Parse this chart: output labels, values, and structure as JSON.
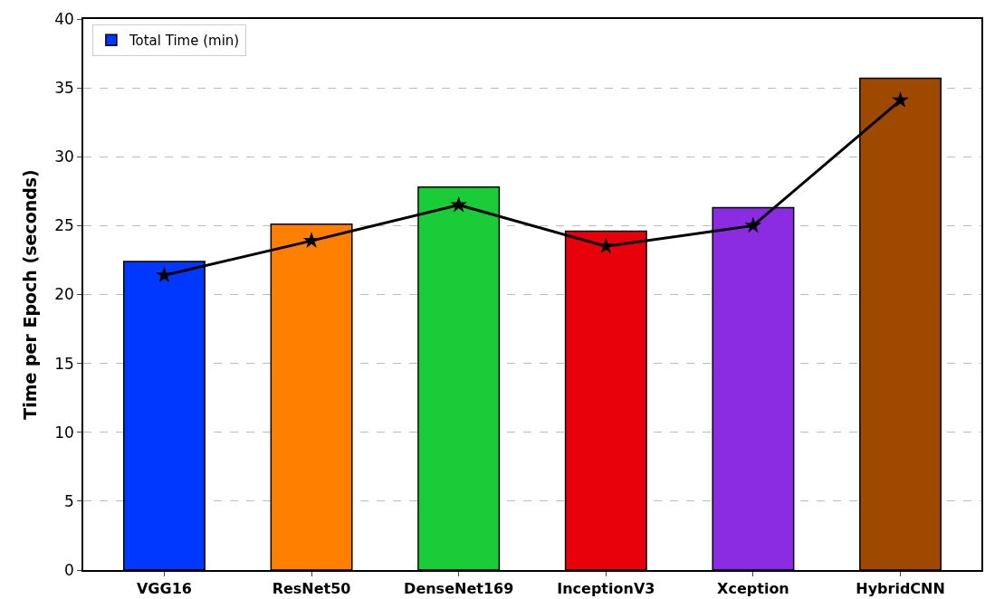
{
  "chart_data": {
    "type": "bar",
    "ylabel": "Time per Epoch (seconds)",
    "categories": [
      "VGG16",
      "ResNet50",
      "DenseNet169",
      "InceptionV3",
      "Xception",
      "HybridCNN"
    ],
    "series": [
      {
        "name": "Total Time (min)",
        "colors": [
          "#0038ff",
          "#ff7f00",
          "#19cc38",
          "#e8000b",
          "#8b2be2",
          "#9f4800"
        ],
        "values": [
          22.4,
          25.1,
          27.8,
          24.6,
          26.3,
          35.7
        ]
      },
      {
        "type": "line",
        "color": "#000000",
        "marker": "star",
        "line_style": "solid",
        "values": [
          21.4,
          23.9,
          26.5,
          23.5,
          25.0,
          34.1
        ]
      }
    ],
    "ylim": [
      0,
      40
    ],
    "yticks": [
      0,
      5,
      10,
      15,
      20,
      25,
      30,
      35,
      40
    ],
    "grid": "y",
    "legend": "top left"
  }
}
